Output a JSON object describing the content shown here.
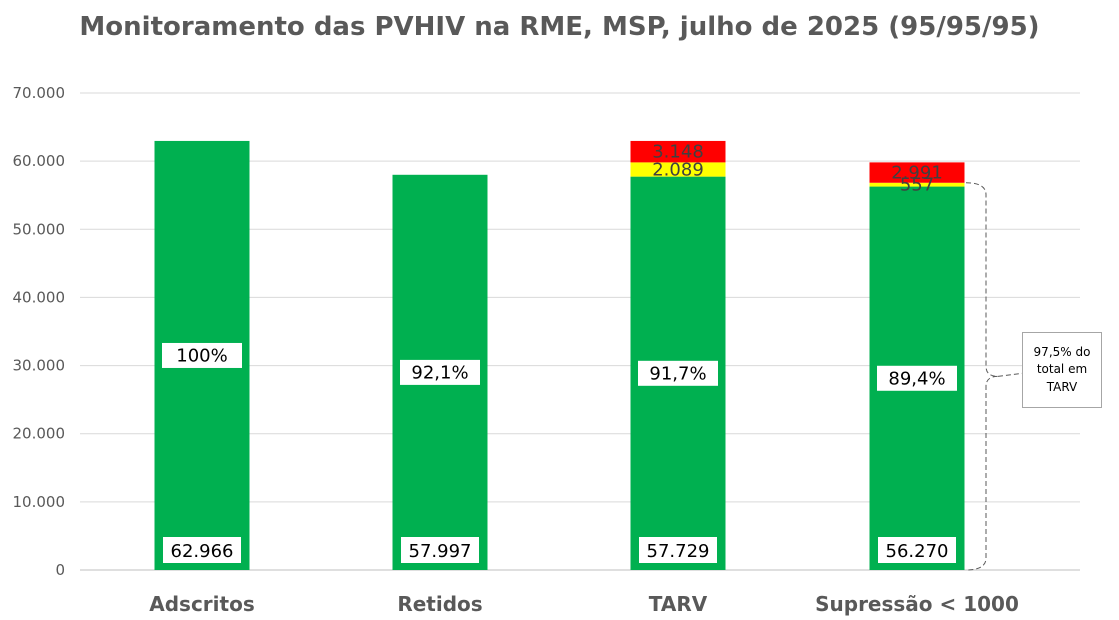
{
  "chart_data": {
    "type": "bar",
    "stacked": true,
    "title": "Monitoramento das PVHIV na RME, MSP, julho de 2025 (95/95/95)",
    "categories": [
      "Adscritos",
      "Retidos",
      "TARV",
      "Supressão < 1000"
    ],
    "ylim": [
      0,
      70000
    ],
    "yticks": [
      0,
      10000,
      20000,
      30000,
      40000,
      50000,
      60000,
      70000
    ],
    "ytick_labels": [
      "0",
      "10.000",
      "20.000",
      "30.000",
      "40.000",
      "50.000",
      "60.000",
      "70.000"
    ],
    "grid": true,
    "series": [
      {
        "color": "#00b050",
        "values": [
          62966,
          57997,
          57729,
          56270
        ],
        "labels": [
          "62.966",
          "57.997",
          "57.729",
          "56.270"
        ],
        "percent_labels": [
          "100%",
          "92,1%",
          "91,7%",
          "89,4%"
        ]
      },
      {
        "color": "#ffff00",
        "values": [
          0,
          0,
          2089,
          557
        ],
        "labels": [
          "",
          "",
          "2.089",
          "557"
        ]
      },
      {
        "color": "#ff0000",
        "values": [
          0,
          0,
          3148,
          2991
        ],
        "labels": [
          "",
          "",
          "3.148",
          "2.991"
        ]
      }
    ],
    "annotation": "97,5% do total em TARV"
  }
}
